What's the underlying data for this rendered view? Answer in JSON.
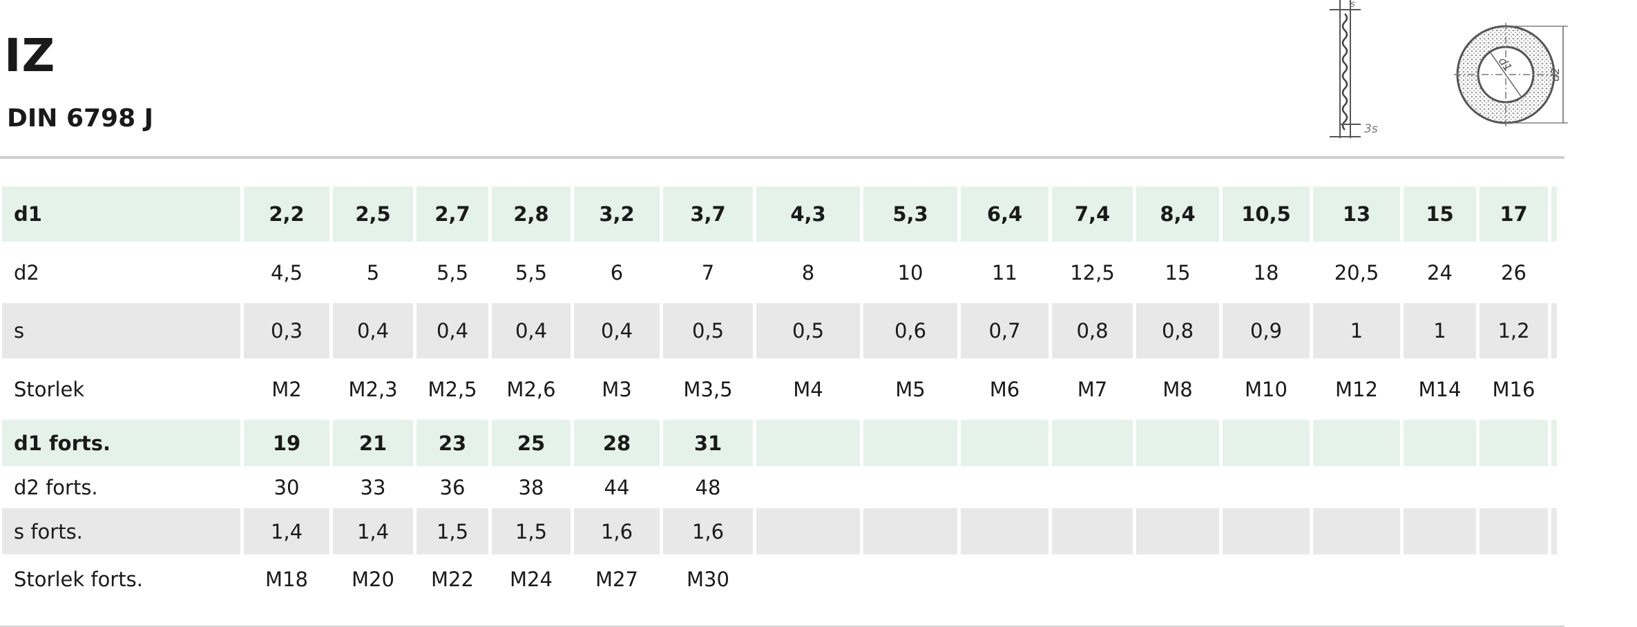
{
  "header": {
    "title": "IZ",
    "subtitle": "DIN 6798 J"
  },
  "figure": {
    "labels": {
      "s_top": "s",
      "s_bottom": "3s",
      "d1": "d1",
      "d2": "d2"
    }
  },
  "table": {
    "rows": [
      {
        "label": "d1",
        "style": "green",
        "values": [
          "2,2",
          "2,5",
          "2,7",
          "2,8",
          "3,2",
          "3,7",
          "4,3",
          "5,3",
          "6,4",
          "7,4",
          "8,4",
          "10,5",
          "13",
          "15",
          "17"
        ]
      },
      {
        "label": "d2",
        "style": "white",
        "values": [
          "4,5",
          "5",
          "5,5",
          "5,5",
          "6",
          "7",
          "8",
          "10",
          "11",
          "12,5",
          "15",
          "18",
          "20,5",
          "24",
          "26"
        ]
      },
      {
        "label": "s",
        "style": "grey",
        "values": [
          "0,3",
          "0,4",
          "0,4",
          "0,4",
          "0,4",
          "0,5",
          "0,5",
          "0,6",
          "0,7",
          "0,8",
          "0,8",
          "0,9",
          "1",
          "1",
          "1,2"
        ]
      },
      {
        "label": "Storlek",
        "style": "white",
        "values": [
          "M2",
          "M2,3",
          "M2,5",
          "M2,6",
          "M3",
          "M3,5",
          "M4",
          "M5",
          "M6",
          "M7",
          "M8",
          "M10",
          "M12",
          "M14",
          "M16"
        ]
      },
      {
        "label": "d1 forts.",
        "style": "green",
        "values": [
          "19",
          "21",
          "23",
          "25",
          "28",
          "31",
          "",
          "",
          "",
          "",
          "",
          "",
          "",
          "",
          ""
        ]
      },
      {
        "label": "d2 forts.",
        "style": "white",
        "values": [
          "30",
          "33",
          "36",
          "38",
          "44",
          "48",
          "",
          "",
          "",
          "",
          "",
          "",
          "",
          "",
          ""
        ]
      },
      {
        "label": "s forts.",
        "style": "grey",
        "values": [
          "1,4",
          "1,4",
          "1,5",
          "1,5",
          "1,6",
          "1,6",
          "",
          "",
          "",
          "",
          "",
          "",
          "",
          "",
          ""
        ]
      },
      {
        "label": "Storlek forts.",
        "style": "white",
        "values": [
          "M18",
          "M20",
          "M22",
          "M24",
          "M27",
          "M30",
          "",
          "",
          "",
          "",
          "",
          "",
          "",
          "",
          ""
        ]
      }
    ]
  }
}
